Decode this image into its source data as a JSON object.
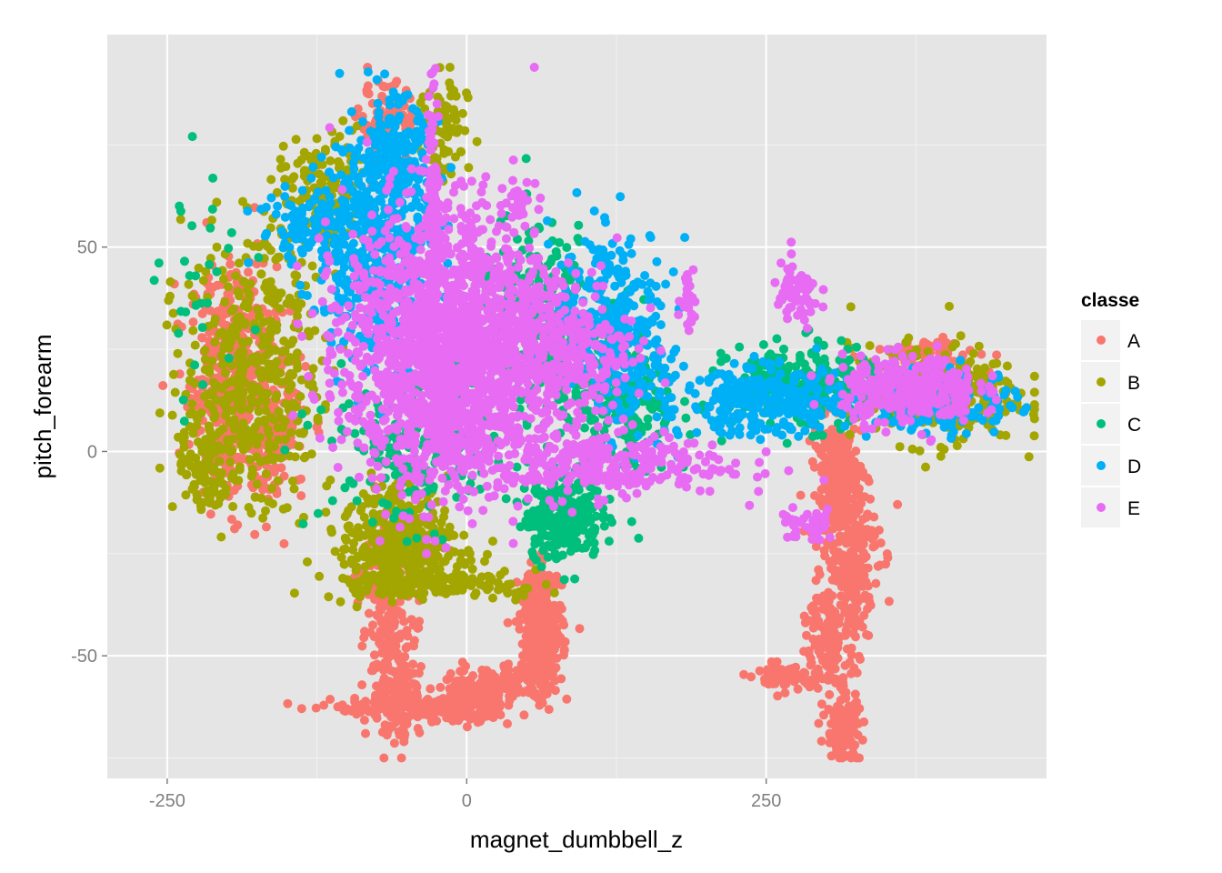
{
  "chart_data": {
    "type": "scatter",
    "title": "",
    "xlabel": "magnet_dumbbell_z",
    "ylabel": "pitch_forearm",
    "xlim": [
      -300,
      484
    ],
    "ylim": [
      -80,
      102
    ],
    "x_ticks": [
      -250,
      0,
      250
    ],
    "x_tick_labels": [
      "-250",
      "0",
      "250"
    ],
    "y_ticks": [
      -50,
      0,
      50
    ],
    "y_tick_labels": [
      "-50",
      "0",
      "50"
    ],
    "grid": true,
    "legend": {
      "title": "classe",
      "placement": "right",
      "entries": [
        "A",
        "B",
        "C",
        "D",
        "E"
      ]
    },
    "series": [
      {
        "name": "A",
        "color": "#F8766D",
        "clusters": [
          {
            "cx": -195,
            "cy": 18,
            "sx": 18,
            "sy": 14,
            "n": 420
          },
          {
            "cx": -160,
            "cy": 4,
            "sx": 14,
            "sy": 10,
            "n": 120
          },
          {
            "cx": -65,
            "cy": 80,
            "sx": 12,
            "sy": 5,
            "n": 90
          },
          {
            "cx": -65,
            "cy": -40,
            "sx": 12,
            "sy": 12,
            "n": 220
          },
          {
            "cx": -55,
            "cy": -58,
            "sx": 8,
            "sy": 6,
            "n": 130
          },
          {
            "cx": -35,
            "cy": -63,
            "sx": 38,
            "sy": 1.5,
            "n": 170
          },
          {
            "cx": 0,
            "cy": -60,
            "sx": 12,
            "sy": 3,
            "n": 130
          },
          {
            "cx": 30,
            "cy": -57,
            "sx": 15,
            "sy": 2,
            "n": 70
          },
          {
            "cx": 62,
            "cy": -44,
            "sx": 9,
            "sy": 8,
            "n": 320
          },
          {
            "cx": 310,
            "cy": -5,
            "sx": 10,
            "sy": 6,
            "n": 220
          },
          {
            "cx": 320,
            "cy": -25,
            "sx": 12,
            "sy": 10,
            "n": 220
          },
          {
            "cx": 305,
            "cy": -45,
            "sx": 10,
            "sy": 8,
            "n": 160
          },
          {
            "cx": 265,
            "cy": -55,
            "sx": 14,
            "sy": 2,
            "n": 60
          },
          {
            "cx": 315,
            "cy": -68,
            "sx": 7,
            "sy": 4,
            "n": 120
          },
          {
            "cx": 385,
            "cy": 24,
            "sx": 22,
            "sy": 2,
            "n": 60
          }
        ]
      },
      {
        "name": "B",
        "color": "#A3A500",
        "clusters": [
          {
            "cx": -180,
            "cy": 20,
            "sx": 28,
            "sy": 16,
            "n": 420
          },
          {
            "cx": -215,
            "cy": -5,
            "sx": 14,
            "sy": 5,
            "n": 100
          },
          {
            "cx": -120,
            "cy": 62,
            "sx": 20,
            "sy": 8,
            "n": 140
          },
          {
            "cx": -20,
            "cy": 78,
            "sx": 10,
            "sy": 8,
            "n": 80
          },
          {
            "cx": -60,
            "cy": -18,
            "sx": 22,
            "sy": 6,
            "n": 220
          },
          {
            "cx": -45,
            "cy": -26,
            "sx": 28,
            "sy": 4,
            "n": 160
          },
          {
            "cx": -60,
            "cy": -32,
            "sx": 30,
            "sy": 2,
            "n": 90
          },
          {
            "cx": 10,
            "cy": -33,
            "sx": 30,
            "sy": 1.5,
            "n": 60
          },
          {
            "cx": 390,
            "cy": 14,
            "sx": 35,
            "sy": 6,
            "n": 320
          }
        ]
      },
      {
        "name": "C",
        "color": "#00BF7D",
        "clusters": [
          {
            "cx": 80,
            "cy": -16,
            "sx": 16,
            "sy": 5,
            "n": 260
          },
          {
            "cx": 130,
            "cy": 10,
            "sx": 22,
            "sy": 10,
            "n": 220
          },
          {
            "cx": 60,
            "cy": 32,
            "sx": 25,
            "sy": 12,
            "n": 220
          },
          {
            "cx": -40,
            "cy": 2,
            "sx": 40,
            "sy": 10,
            "n": 220
          },
          {
            "cx": 280,
            "cy": 16,
            "sx": 30,
            "sy": 5,
            "n": 260
          },
          {
            "cx": -220,
            "cy": 40,
            "sx": 18,
            "sy": 15,
            "n": 30
          }
        ]
      },
      {
        "name": "D",
        "color": "#00B0F6",
        "clusters": [
          {
            "cx": -75,
            "cy": 50,
            "sx": 25,
            "sy": 14,
            "n": 480
          },
          {
            "cx": -60,
            "cy": 70,
            "sx": 15,
            "sy": 8,
            "n": 200
          },
          {
            "cx": -130,
            "cy": 55,
            "sx": 22,
            "sy": 5,
            "n": 100
          },
          {
            "cx": 120,
            "cy": 35,
            "sx": 25,
            "sy": 10,
            "n": 220
          },
          {
            "cx": 140,
            "cy": 18,
            "sx": 20,
            "sy": 8,
            "n": 110
          },
          {
            "cx": 250,
            "cy": 12,
            "sx": 35,
            "sy": 4,
            "n": 320
          },
          {
            "cx": 400,
            "cy": 12,
            "sx": 30,
            "sy": 4,
            "n": 160
          }
        ]
      },
      {
        "name": "E",
        "color": "#E76BF3",
        "clusters": [
          {
            "cx": -20,
            "cy": 25,
            "sx": 40,
            "sy": 17,
            "n": 1700
          },
          {
            "cx": 70,
            "cy": 25,
            "sx": 35,
            "sy": 10,
            "n": 420
          },
          {
            "cx": 100,
            "cy": -3,
            "sx": 60,
            "sy": 4,
            "n": 320
          },
          {
            "cx": -28,
            "cy": 60,
            "sx": 3,
            "sy": 15,
            "n": 130
          },
          {
            "cx": 370,
            "cy": 15,
            "sx": 28,
            "sy": 4,
            "n": 360
          },
          {
            "cx": 275,
            "cy": 38,
            "sx": 10,
            "sy": 4,
            "n": 70
          },
          {
            "cx": 285,
            "cy": -18,
            "sx": 12,
            "sy": 2,
            "n": 40
          },
          {
            "cx": 185,
            "cy": 38,
            "sx": 3,
            "sy": 4,
            "n": 30
          },
          {
            "cx": 45,
            "cy": 62,
            "sx": 5,
            "sy": 3,
            "n": 20
          }
        ]
      }
    ]
  }
}
